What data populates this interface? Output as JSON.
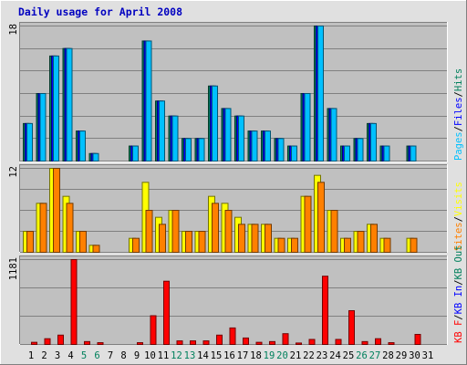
{
  "title": "Daily usage for April 2008",
  "colors": {
    "hits": "#00805c",
    "files": "#0000ff",
    "pages": "#00c0ff",
    "visits": "#ffff00",
    "sites": "#ff8000",
    "kbin": "#0000ff",
    "kbout": "#00805c",
    "kbf": "#ff0000",
    "panel_bg": "#c0c0c0",
    "grid": "#808080",
    "weekend_label": "#00805c",
    "weekday_label": "#000000"
  },
  "chart_data": [
    {
      "type": "bar",
      "panel": "top",
      "ymax_label": "18",
      "ymax": 18,
      "legend": [
        {
          "text": "Pages",
          "color_key": "pages"
        },
        {
          "text": "Files",
          "color_key": "files"
        },
        {
          "text": "Hits",
          "color_key": "hits"
        }
      ],
      "categories": [
        "1",
        "2",
        "3",
        "4",
        "5",
        "6",
        "7",
        "8",
        "9",
        "10",
        "11",
        "12",
        "13",
        "14",
        "15",
        "16",
        "17",
        "18",
        "19",
        "20",
        "21",
        "22",
        "23",
        "24",
        "25",
        "26",
        "27",
        "28",
        "29",
        "30",
        "31"
      ],
      "series": [
        {
          "name": "Hits",
          "color_key": "hits",
          "values": [
            5,
            9,
            14,
            15,
            4,
            1,
            0,
            0,
            2,
            16,
            8,
            6,
            3,
            3,
            10,
            7,
            6,
            4,
            4,
            3,
            2,
            9,
            18,
            7,
            2,
            3,
            5,
            2,
            0,
            2,
            0
          ]
        },
        {
          "name": "Files",
          "color_key": "files",
          "values": [
            5,
            9,
            14,
            15,
            4,
            1,
            0,
            0,
            2,
            16,
            8,
            6,
            3,
            3,
            10,
            7,
            6,
            4,
            4,
            3,
            2,
            9,
            18,
            7,
            2,
            3,
            5,
            2,
            0,
            2,
            0
          ]
        },
        {
          "name": "Pages",
          "color_key": "pages",
          "values": [
            5,
            9,
            14,
            15,
            4,
            1,
            0,
            0,
            2,
            16,
            8,
            6,
            3,
            3,
            10,
            7,
            6,
            4,
            4,
            3,
            2,
            9,
            18,
            7,
            2,
            3,
            5,
            2,
            0,
            2,
            0
          ]
        }
      ]
    },
    {
      "type": "bar",
      "panel": "middle",
      "ymax_label": "12",
      "ymax": 12,
      "legend": [
        {
          "text": "Sites",
          "color_key": "sites"
        },
        {
          "text": "Visits",
          "color_key": "visits"
        }
      ],
      "categories": [
        "1",
        "2",
        "3",
        "4",
        "5",
        "6",
        "7",
        "8",
        "9",
        "10",
        "11",
        "12",
        "13",
        "14",
        "15",
        "16",
        "17",
        "18",
        "19",
        "20",
        "21",
        "22",
        "23",
        "24",
        "25",
        "26",
        "27",
        "28",
        "29",
        "30",
        "31"
      ],
      "series": [
        {
          "name": "Visits",
          "color_key": "visits",
          "values": [
            3,
            7,
            12,
            8,
            3,
            1,
            0,
            0,
            2,
            10,
            5,
            6,
            3,
            3,
            8,
            7,
            5,
            4,
            4,
            2,
            2,
            8,
            11,
            6,
            2,
            3,
            4,
            2,
            0,
            2,
            0
          ]
        },
        {
          "name": "Sites",
          "color_key": "sites",
          "values": [
            3,
            7,
            12,
            7,
            3,
            1,
            0,
            0,
            2,
            6,
            4,
            6,
            3,
            3,
            7,
            6,
            4,
            4,
            4,
            2,
            2,
            8,
            10,
            6,
            2,
            3,
            4,
            2,
            0,
            2,
            0
          ]
        }
      ]
    },
    {
      "type": "bar",
      "panel": "bottom",
      "ymax_label": "1181",
      "ymax": 1181,
      "legend": [
        {
          "text": "KB F",
          "color_key": "kbf"
        },
        {
          "text": "KB In",
          "color_key": "kbin"
        },
        {
          "text": "KB Out",
          "color_key": "kbout"
        }
      ],
      "categories": [
        "1",
        "2",
        "3",
        "4",
        "5",
        "6",
        "7",
        "8",
        "9",
        "10",
        "11",
        "12",
        "13",
        "14",
        "15",
        "16",
        "17",
        "18",
        "19",
        "20",
        "21",
        "22",
        "23",
        "24",
        "25",
        "26",
        "27",
        "28",
        "29",
        "30",
        "31"
      ],
      "series": [
        {
          "name": "KB F",
          "color_key": "kbf",
          "values": [
            30,
            80,
            130,
            1181,
            40,
            25,
            0,
            0,
            25,
            400,
            880,
            50,
            50,
            50,
            130,
            230,
            90,
            30,
            40,
            150,
            20,
            70,
            950,
            70,
            470,
            40,
            80,
            25,
            0,
            140,
            0
          ]
        }
      ]
    }
  ],
  "day_labels": [
    {
      "text": "1",
      "weekend": false
    },
    {
      "text": "2",
      "weekend": false
    },
    {
      "text": "3",
      "weekend": false
    },
    {
      "text": "4",
      "weekend": false
    },
    {
      "text": "5",
      "weekend": true
    },
    {
      "text": "6",
      "weekend": true
    },
    {
      "text": "7",
      "weekend": false
    },
    {
      "text": "8",
      "weekend": false
    },
    {
      "text": "9",
      "weekend": false
    },
    {
      "text": "10",
      "weekend": false
    },
    {
      "text": "11",
      "weekend": false
    },
    {
      "text": "12",
      "weekend": true
    },
    {
      "text": "13",
      "weekend": true
    },
    {
      "text": "14",
      "weekend": false
    },
    {
      "text": "15",
      "weekend": false
    },
    {
      "text": "16",
      "weekend": false
    },
    {
      "text": "17",
      "weekend": false
    },
    {
      "text": "18",
      "weekend": false
    },
    {
      "text": "19",
      "weekend": true
    },
    {
      "text": "20",
      "weekend": true
    },
    {
      "text": "21",
      "weekend": false
    },
    {
      "text": "22",
      "weekend": false
    },
    {
      "text": "23",
      "weekend": false
    },
    {
      "text": "24",
      "weekend": false
    },
    {
      "text": "25",
      "weekend": false
    },
    {
      "text": "26",
      "weekend": true
    },
    {
      "text": "27",
      "weekend": true
    },
    {
      "text": "28",
      "weekend": false
    },
    {
      "text": "29",
      "weekend": false
    },
    {
      "text": "30",
      "weekend": false
    },
    {
      "text": "31",
      "weekend": false
    }
  ]
}
